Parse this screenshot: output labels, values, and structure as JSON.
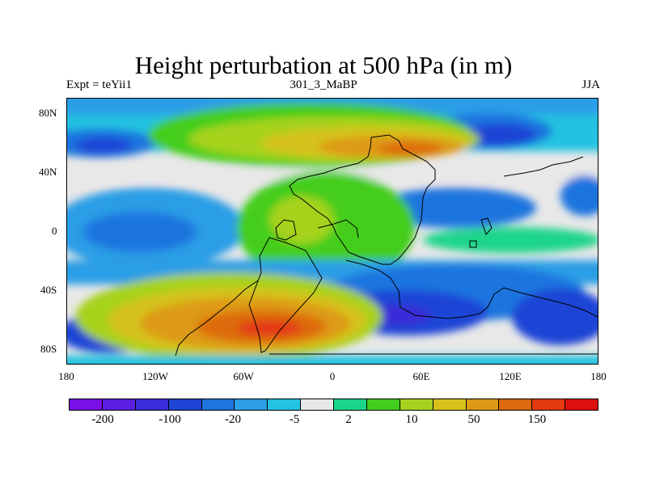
{
  "title": "Height perturbation at 500 hPa (in m)",
  "left_string": "Expt = teYii1",
  "center_string": "301_3_MaBP",
  "right_string": "JJA",
  "y_ticks": [
    "80N",
    "40N",
    "0",
    "40S",
    "80S"
  ],
  "x_ticks": [
    "180",
    "120W",
    "60W",
    "0",
    "60E",
    "120E",
    "180"
  ],
  "colorbar": {
    "colors": [
      "#7a0fe6",
      "#5a1ee0",
      "#3a2cd8",
      "#1f45d6",
      "#1f74df",
      "#2b9ee6",
      "#23c2e0",
      "#e8e8e8",
      "#1cd58a",
      "#44cd1f",
      "#a6d21f",
      "#d6c21a",
      "#dd9a14",
      "#dd6a10",
      "#e43a12",
      "#dd1010"
    ],
    "labels": [
      "-200",
      "-100",
      "-20",
      "-5",
      "2",
      "10",
      "50",
      "150"
    ]
  }
}
